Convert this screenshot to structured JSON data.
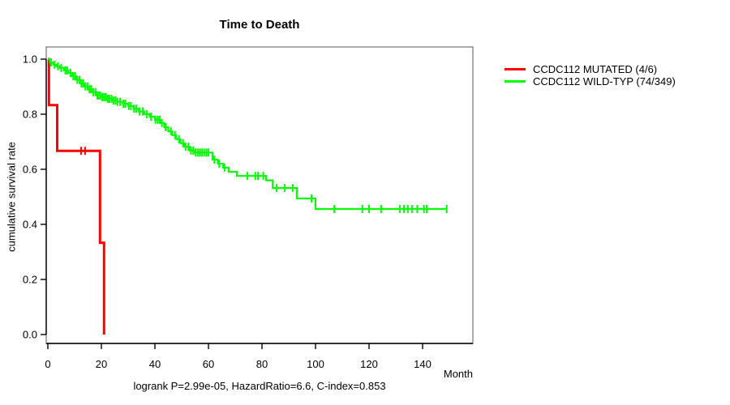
{
  "chart_data": {
    "type": "line",
    "subtype": "kaplan-meier-step-curve",
    "title": "Time to Death",
    "ylabel": "cumulative survival rate",
    "xlabel": "Month",
    "annotation": "logrank P=2.99e-05, HazardRatio=6.6, C-index=0.853",
    "xlim": [
      0,
      158
    ],
    "ylim": [
      0,
      1.04
    ],
    "x_ticks": [
      0,
      20,
      40,
      60,
      80,
      100,
      120,
      140
    ],
    "y_ticks": [
      "0.0",
      "0.2",
      "0.4",
      "0.6",
      "0.8",
      "1.0"
    ],
    "grid": false,
    "legend_position": "right-outside",
    "colors": {
      "background": "#ffffff",
      "box": "#888888",
      "axis": "#000000",
      "mutated": "#ff0000",
      "wildtype": "#00ff00"
    },
    "series": [
      {
        "name": "CCDC112 MUTATED (4/6)",
        "color": "#ff0000",
        "line_width": 3,
        "end_time": 21,
        "steps": [
          [
            0,
            1.0
          ],
          [
            0.4,
            0.833
          ],
          [
            3.5,
            0.667
          ],
          [
            19.5,
            0.333
          ],
          [
            21,
            0.0
          ]
        ],
        "censor_times": [
          12.4,
          13.9
        ]
      },
      {
        "name": "CCDC112 WILD-TYP (74/349)",
        "color": "#00ff00",
        "line_width": 2.2,
        "end_time": 149,
        "steps": [
          [
            0,
            1.0
          ],
          [
            0.8,
            0.988
          ],
          [
            2,
            0.98
          ],
          [
            3.2,
            0.974
          ],
          [
            4.5,
            0.968
          ],
          [
            6,
            0.959
          ],
          [
            7.5,
            0.95
          ],
          [
            9,
            0.938
          ],
          [
            10.5,
            0.925
          ],
          [
            12,
            0.912
          ],
          [
            13.5,
            0.901
          ],
          [
            15,
            0.891
          ],
          [
            16.5,
            0.88
          ],
          [
            18,
            0.868
          ],
          [
            20,
            0.862
          ],
          [
            22,
            0.856
          ],
          [
            24,
            0.85
          ],
          [
            26,
            0.845
          ],
          [
            28,
            0.838
          ],
          [
            30,
            0.83
          ],
          [
            32,
            0.82
          ],
          [
            34,
            0.81
          ],
          [
            36,
            0.8
          ],
          [
            38,
            0.791
          ],
          [
            40,
            0.78
          ],
          [
            42,
            0.768
          ],
          [
            43.5,
            0.753
          ],
          [
            45,
            0.738
          ],
          [
            46.5,
            0.724
          ],
          [
            48,
            0.709
          ],
          [
            49.5,
            0.695
          ],
          [
            51,
            0.682
          ],
          [
            53,
            0.668
          ],
          [
            55,
            0.661
          ],
          [
            61.5,
            0.635
          ],
          [
            63.5,
            0.62
          ],
          [
            65.5,
            0.606
          ],
          [
            67.5,
            0.591
          ],
          [
            70.6,
            0.576
          ],
          [
            81.5,
            0.56
          ],
          [
            84,
            0.532
          ],
          [
            93,
            0.494
          ],
          [
            100,
            0.456
          ]
        ],
        "censor_times": [
          1.2,
          2.5,
          3.8,
          5,
          6.5,
          7.2,
          8.5,
          9.5,
          10.2,
          11,
          11.8,
          12.5,
          13.2,
          14,
          14.8,
          15.5,
          16.2,
          17,
          17.8,
          18.5,
          19,
          19.6,
          20.3,
          21,
          21.7,
          22.4,
          23,
          23.8,
          24.5,
          25.2,
          26,
          27,
          28.2,
          29,
          30.2,
          31,
          32.2,
          33,
          34.2,
          35.5,
          37,
          38.5,
          40.2,
          41,
          41.8,
          42.6,
          44,
          46,
          47.5,
          49,
          50.5,
          51.5,
          52.5,
          53.5,
          54.3,
          55.2,
          56,
          56.8,
          57.6,
          58.4,
          59.2,
          60,
          62.2,
          64,
          66,
          74.5,
          77.5,
          78.5,
          80.5,
          85.5,
          88.5,
          91.5,
          98.5,
          107,
          117.5,
          120,
          124.5,
          131.5,
          133,
          134.5,
          136,
          138,
          140.5,
          141.5,
          149
        ]
      }
    ]
  }
}
